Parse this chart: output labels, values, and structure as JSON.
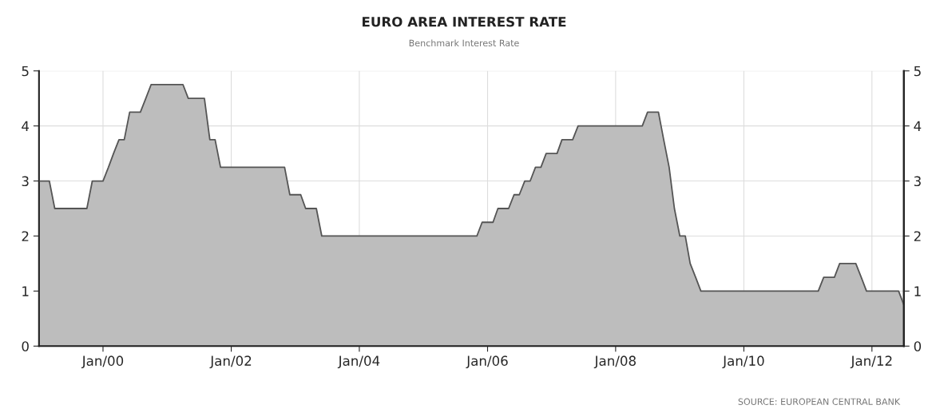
{
  "chart_data": {
    "type": "area",
    "title": "EURO AREA INTEREST RATE",
    "subtitle": "Benchmark Interest Rate",
    "annotations": [
      "SOURCE: EUROPEAN CENTRAL BANK"
    ],
    "x": [
      "1999-01",
      "1999-02",
      "1999-03",
      "1999-04",
      "1999-05",
      "1999-06",
      "1999-07",
      "1999-08",
      "1999-09",
      "1999-10",
      "1999-11",
      "1999-12",
      "2000-01",
      "2000-02",
      "2000-03",
      "2000-04",
      "2000-05",
      "2000-06",
      "2000-07",
      "2000-08",
      "2000-09",
      "2000-10",
      "2000-11",
      "2000-12",
      "2001-01",
      "2001-02",
      "2001-03",
      "2001-04",
      "2001-05",
      "2001-06",
      "2001-07",
      "2001-08",
      "2001-09",
      "2001-10",
      "2001-11",
      "2001-12",
      "2002-01",
      "2002-02",
      "2002-03",
      "2002-04",
      "2002-05",
      "2002-06",
      "2002-07",
      "2002-08",
      "2002-09",
      "2002-10",
      "2002-11",
      "2002-12",
      "2003-01",
      "2003-02",
      "2003-03",
      "2003-04",
      "2003-05",
      "2003-06",
      "2003-07",
      "2003-08",
      "2003-09",
      "2003-10",
      "2003-11",
      "2003-12",
      "2004-01",
      "2004-02",
      "2004-03",
      "2004-04",
      "2004-05",
      "2004-06",
      "2004-07",
      "2004-08",
      "2004-09",
      "2004-10",
      "2004-11",
      "2004-12",
      "2005-01",
      "2005-02",
      "2005-03",
      "2005-04",
      "2005-05",
      "2005-06",
      "2005-07",
      "2005-08",
      "2005-09",
      "2005-10",
      "2005-11",
      "2005-12",
      "2006-01",
      "2006-02",
      "2006-03",
      "2006-04",
      "2006-05",
      "2006-06",
      "2006-07",
      "2006-08",
      "2006-09",
      "2006-10",
      "2006-11",
      "2006-12",
      "2007-01",
      "2007-02",
      "2007-03",
      "2007-04",
      "2007-05",
      "2007-06",
      "2007-07",
      "2007-08",
      "2007-09",
      "2007-10",
      "2007-11",
      "2007-12",
      "2008-01",
      "2008-02",
      "2008-03",
      "2008-04",
      "2008-05",
      "2008-06",
      "2008-07",
      "2008-08",
      "2008-09",
      "2008-10",
      "2008-11",
      "2008-12",
      "2009-01",
      "2009-02",
      "2009-03",
      "2009-04",
      "2009-05",
      "2009-06",
      "2009-07",
      "2009-08",
      "2009-09",
      "2009-10",
      "2009-11",
      "2009-12",
      "2010-01",
      "2010-02",
      "2010-03",
      "2010-04",
      "2010-05",
      "2010-06",
      "2010-07",
      "2010-08",
      "2010-09",
      "2010-10",
      "2010-11",
      "2010-12",
      "2011-01",
      "2011-02",
      "2011-03",
      "2011-04",
      "2011-05",
      "2011-06",
      "2011-07",
      "2011-08",
      "2011-09",
      "2011-10",
      "2011-11",
      "2011-12",
      "2012-01",
      "2012-02",
      "2012-03",
      "2012-04",
      "2012-05",
      "2012-06",
      "2012-07"
    ],
    "series": [
      {
        "color": "#bdbdbd",
        "values": [
          3,
          3,
          3,
          2.5,
          2.5,
          2.5,
          2.5,
          2.5,
          2.5,
          2.5,
          3,
          3,
          3,
          3.25,
          3.5,
          3.75,
          3.75,
          4.25,
          4.25,
          4.25,
          4.5,
          4.75,
          4.75,
          4.75,
          4.75,
          4.75,
          4.75,
          4.75,
          4.5,
          4.5,
          4.5,
          4.5,
          3.75,
          3.75,
          3.25,
          3.25,
          3.25,
          3.25,
          3.25,
          3.25,
          3.25,
          3.25,
          3.25,
          3.25,
          3.25,
          3.25,
          3.25,
          2.75,
          2.75,
          2.75,
          2.5,
          2.5,
          2.5,
          2,
          2,
          2,
          2,
          2,
          2,
          2,
          2,
          2,
          2,
          2,
          2,
          2,
          2,
          2,
          2,
          2,
          2,
          2,
          2,
          2,
          2,
          2,
          2,
          2,
          2,
          2,
          2,
          2,
          2,
          2.25,
          2.25,
          2.25,
          2.5,
          2.5,
          2.5,
          2.75,
          2.75,
          3,
          3,
          3.25,
          3.25,
          3.5,
          3.5,
          3.5,
          3.75,
          3.75,
          3.75,
          4,
          4,
          4,
          4,
          4,
          4,
          4,
          4,
          4,
          4,
          4,
          4,
          4,
          4.25,
          4.25,
          4.25,
          3.75,
          3.25,
          2.5,
          2,
          2,
          1.5,
          1.25,
          1,
          1,
          1,
          1,
          1,
          1,
          1,
          1,
          1,
          1,
          1,
          1,
          1,
          1,
          1,
          1,
          1,
          1,
          1,
          1,
          1,
          1,
          1,
          1.25,
          1.25,
          1.25,
          1.5,
          1.5,
          1.5,
          1.5,
          1.25,
          1,
          1,
          1,
          1,
          1,
          1,
          1,
          0.75
        ]
      }
    ],
    "xlim": [
      "1999-01",
      "2012-07"
    ],
    "xticks": [
      {
        "value": "2000-01",
        "label": "Jan/00"
      },
      {
        "value": "2002-01",
        "label": "Jan/02"
      },
      {
        "value": "2004-01",
        "label": "Jan/04"
      },
      {
        "value": "2006-01",
        "label": "Jan/06"
      },
      {
        "value": "2008-01",
        "label": "Jan/08"
      },
      {
        "value": "2010-01",
        "label": "Jan/10"
      },
      {
        "value": "2012-01",
        "label": "Jan/12"
      }
    ],
    "ylim": [
      0,
      5
    ],
    "yticks": [
      0,
      1,
      2,
      3,
      4,
      5
    ],
    "y2lim": [
      0,
      5
    ],
    "y2ticks": [
      0,
      1,
      2,
      3,
      4,
      5
    ],
    "grid": true
  }
}
